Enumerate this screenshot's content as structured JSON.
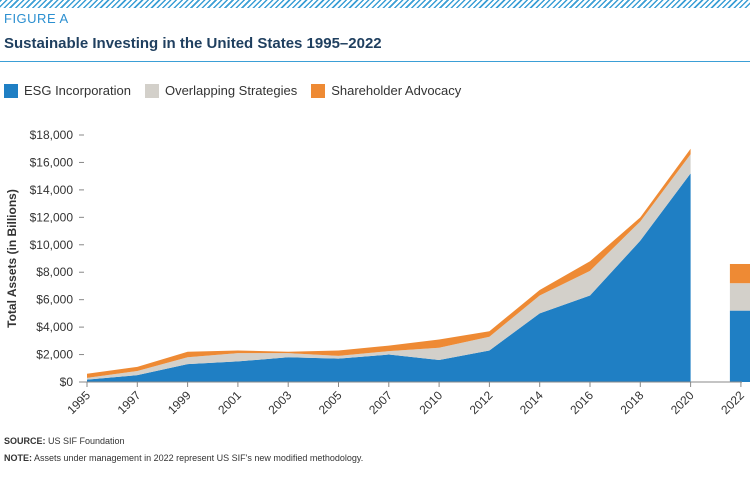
{
  "figure_label": "FIGURE A",
  "colors": {
    "accent": "#3b9fd6",
    "esg": "#1f7fc4",
    "overlap": "#d3d0ca",
    "advocacy": "#ee8a34",
    "axis": "#888888"
  },
  "chart_data": {
    "type": "area",
    "stacked": true,
    "title": "Sustainable Investing in the United States 1995–2022",
    "ylabel": "Total Assets (in Billions)",
    "xlabel": "",
    "ylim": [
      0,
      18000
    ],
    "yticks": [
      "$0",
      "$2,000",
      "$4,000",
      "$6,000",
      "$8,000",
      "$10,000",
      "$12,000",
      "$14,000",
      "$16,000",
      "$18,000"
    ],
    "legend_position": "top-left",
    "grid": false,
    "x": [
      "1995",
      "1997",
      "1999",
      "2001",
      "2003",
      "2005",
      "2007",
      "2010",
      "2012",
      "2014",
      "2016",
      "2018",
      "2020"
    ],
    "series": [
      {
        "name": "ESG Incorporation",
        "values": [
          170,
          500,
          1300,
          1500,
          1800,
          1700,
          2000,
          1600,
          2300,
          5000,
          6300,
          10300,
          15200
        ]
      },
      {
        "name": "Overlapping Strategies",
        "values": [
          130,
          300,
          500,
          600,
          300,
          200,
          250,
          900,
          1000,
          1300,
          1800,
          1400,
          1400
        ]
      },
      {
        "name": "Shareholder Advocacy",
        "values": [
          300,
          300,
          400,
          200,
          100,
          400,
          400,
          600,
          400,
          400,
          700,
          300,
          400
        ]
      }
    ],
    "separate_bar": {
      "x": "2022",
      "values": [
        5200,
        2000,
        1400
      ]
    },
    "all_x_ticks": [
      "1995",
      "1997",
      "1999",
      "2001",
      "2003",
      "2005",
      "2007",
      "2010",
      "2012",
      "2014",
      "2016",
      "2018",
      "2020",
      "2022"
    ]
  },
  "footer": {
    "source_label": "SOURCE:",
    "source_text": " US SIF Foundation",
    "note_label": "NOTE:",
    "note_text": " Assets under management in 2022 represent US SIF's new modified methodology."
  }
}
